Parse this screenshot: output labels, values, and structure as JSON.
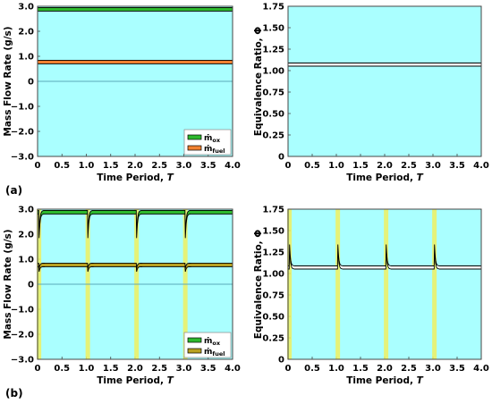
{
  "colors": {
    "plot_bg": "#aaffff",
    "frame": "#444444",
    "ox_fill": "#2db82d",
    "fuel_fill": "#f08030",
    "fuel_fill_b": "#b8a020",
    "phi_fill": "#ffffff",
    "outline": "#000000",
    "zero_line": "#5aa8b8",
    "highlight": "#f0f060"
  },
  "chart_data": [
    {
      "panel": "(a)",
      "type": "line",
      "xlabel": "Time Period, T",
      "ylabel": "Mass Flow Rate (g/s)",
      "xlim": [
        0,
        4
      ],
      "ylim": [
        -3,
        3
      ],
      "xticks": [
        "0",
        "0.5",
        "1.0",
        "1.5",
        "2.0",
        "2.5",
        "3.0",
        "3.5",
        "4.0"
      ],
      "yticks": [
        "−3.0",
        "−2.0",
        "−1.0",
        "0",
        "1.0",
        "2.0",
        "3.0"
      ],
      "legend": {
        "placement": "bottom-right",
        "entries": [
          {
            "main": "ṁ",
            "sub": "ox"
          },
          {
            "main": "ṁ",
            "sub": "fuel"
          }
        ]
      },
      "series": [
        {
          "name": "ṁox",
          "x": [
            0,
            4
          ],
          "y": [
            2.88,
            2.88
          ]
        },
        {
          "name": "ṁfuel",
          "x": [
            0,
            4
          ],
          "y": [
            0.77,
            0.77
          ]
        }
      ]
    },
    {
      "panel": "(a)",
      "type": "line",
      "xlabel": "Time Period, T",
      "ylabel": "Equivalence Ratio, Φ",
      "xlim": [
        0,
        4
      ],
      "ylim": [
        0,
        1.75
      ],
      "xticks": [
        "0",
        "0.5",
        "1.0",
        "1.5",
        "2.0",
        "2.5",
        "3.0",
        "3.5",
        "4.0"
      ],
      "yticks": [
        "0",
        "0.25",
        "0.50",
        "0.75",
        "1.00",
        "1.25",
        "1.50",
        "1.75"
      ],
      "series": [
        {
          "x": [
            0,
            4
          ],
          "y": [
            1.07,
            1.07
          ]
        }
      ]
    },
    {
      "panel": "(b)",
      "type": "line",
      "xlabel": "Time Period, T",
      "ylabel": "Mass Flow Rate (g/s)",
      "xlim": [
        0,
        4
      ],
      "ylim": [
        -3,
        3
      ],
      "xticks": [
        "0",
        "0.5",
        "1.0",
        "1.5",
        "2.0",
        "2.5",
        "3.0",
        "3.5",
        "4.0"
      ],
      "yticks": [
        "−3.0",
        "−2.0",
        "−1.0",
        "0",
        "1.0",
        "2.0",
        "3.0"
      ],
      "legend": {
        "placement": "bottom-right",
        "entries": [
          {
            "main": "ṁ",
            "sub": "ox"
          },
          {
            "main": "ṁ",
            "sub": "fuel"
          }
        ]
      },
      "pulse_times": [
        0.03,
        1.03,
        2.03,
        3.03
      ],
      "series": [
        {
          "name": "ṁox",
          "baseline": 2.88,
          "pulse_min": 1.8
        },
        {
          "name": "ṁfuel",
          "baseline": 0.77,
          "pulse_min": 0.55
        }
      ]
    },
    {
      "panel": "(b)",
      "type": "line",
      "xlabel": "Time Period, T",
      "ylabel": "Equivalence Ratio, Φ",
      "xlim": [
        0,
        4
      ],
      "ylim": [
        0,
        1.75
      ],
      "xticks": [
        "0",
        "0.5",
        "1.0",
        "1.5",
        "2.0",
        "2.5",
        "3.0",
        "3.5",
        "4.0"
      ],
      "yticks": [
        "0",
        "0.25",
        "0.50",
        "0.75",
        "1.00",
        "1.25",
        "1.50",
        "1.75"
      ],
      "pulse_times": [
        0.03,
        1.03,
        2.03,
        3.03
      ],
      "series": [
        {
          "baseline": 1.07,
          "pulse_max": 1.35
        }
      ]
    }
  ]
}
